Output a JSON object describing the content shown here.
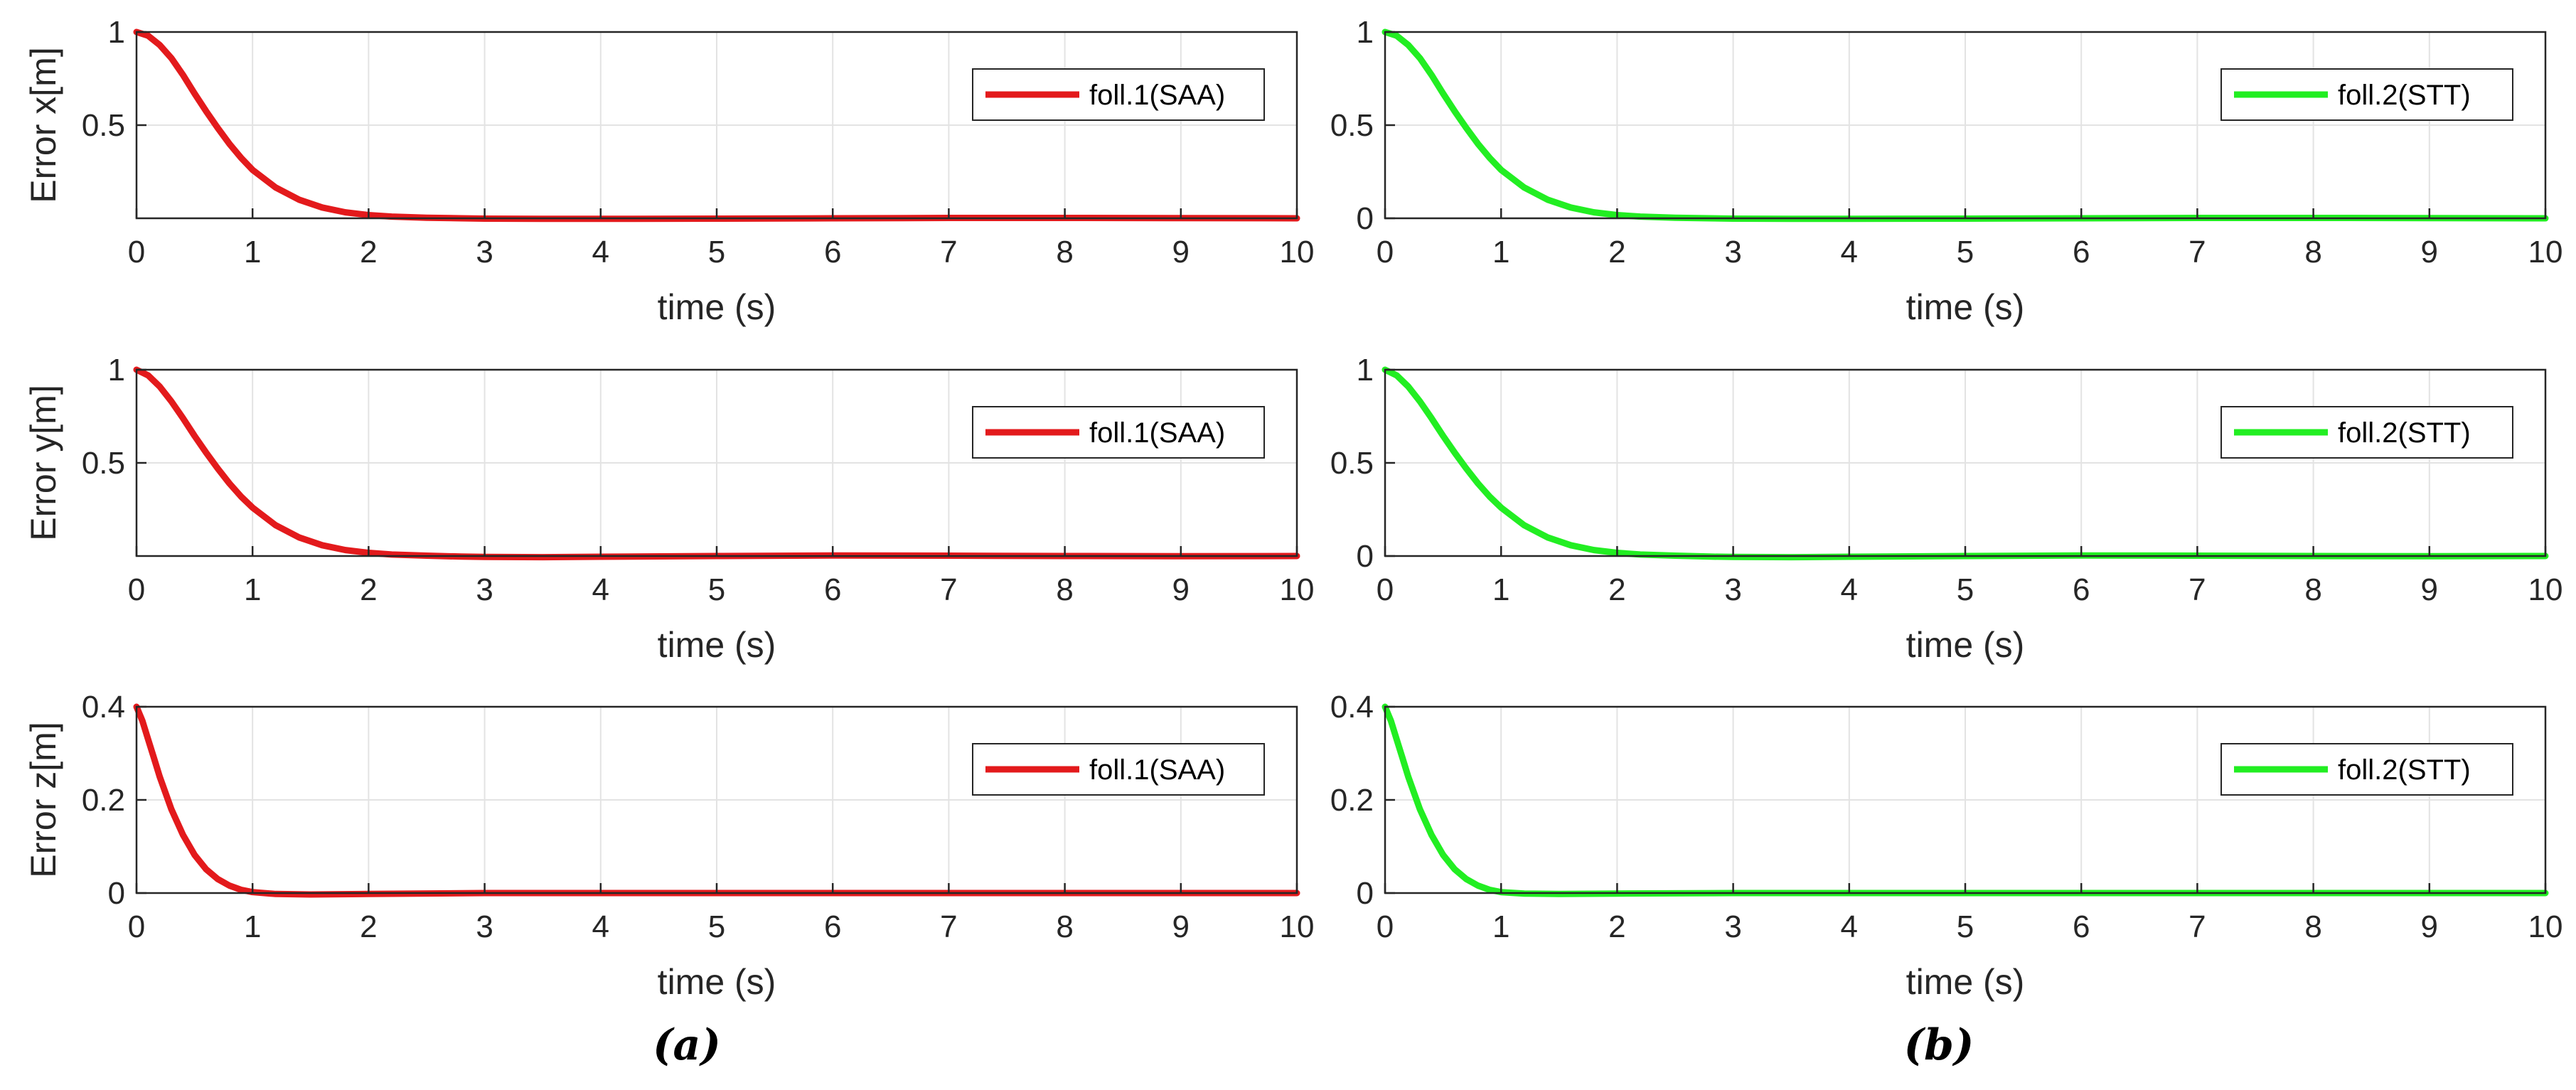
{
  "panel_labels": [
    "(a)",
    "(b)"
  ],
  "chart_data": [
    {
      "type": "line",
      "panel": "(a)",
      "xlabel": "time (s)",
      "ylabel": "Error x[m]",
      "xlim": [
        0,
        10
      ],
      "ylim": [
        0,
        1
      ],
      "xticks": [
        "0",
        "1",
        "2",
        "3",
        "4",
        "5",
        "6",
        "7",
        "8",
        "9",
        "10"
      ],
      "yticks": [
        {
          "v": 0.5,
          "label": "0.5"
        },
        {
          "v": 1,
          "label": "1"
        }
      ],
      "grid": true,
      "legend": "top-right",
      "series": [
        {
          "name": "foll.1(SAA)",
          "color": "#e31a1c",
          "x": [
            0,
            0.1,
            0.2,
            0.3,
            0.4,
            0.5,
            0.6,
            0.7,
            0.8,
            0.9,
            1.0,
            1.2,
            1.4,
            1.6,
            1.8,
            2.0,
            2.2,
            2.5,
            2.8,
            3.0,
            3.5,
            4,
            5,
            6,
            7,
            8,
            9,
            10
          ],
          "y": [
            1.0,
            0.98,
            0.93,
            0.86,
            0.77,
            0.67,
            0.575,
            0.485,
            0.4,
            0.325,
            0.26,
            0.165,
            0.1,
            0.058,
            0.032,
            0.017,
            0.009,
            0.003,
            0.0,
            -0.002,
            -0.003,
            -0.003,
            -0.002,
            0.0,
            0.002,
            0.002,
            0.001,
            0.0
          ]
        }
      ]
    },
    {
      "type": "line",
      "panel": "(b)",
      "xlabel": "time (s)",
      "ylabel": "",
      "xlim": [
        0,
        10
      ],
      "ylim": [
        0,
        1
      ],
      "xticks": [
        "0",
        "1",
        "2",
        "3",
        "4",
        "5",
        "6",
        "7",
        "8",
        "9",
        "10"
      ],
      "yticks": [
        {
          "v": 0,
          "label": "0"
        },
        {
          "v": 0.5,
          "label": "0.5"
        },
        {
          "v": 1,
          "label": "1"
        }
      ],
      "grid": true,
      "legend": "top-right",
      "series": [
        {
          "name": "foll.2(STT)",
          "color": "#22ee22",
          "x": [
            0,
            0.1,
            0.2,
            0.3,
            0.4,
            0.5,
            0.6,
            0.7,
            0.8,
            0.9,
            1.0,
            1.2,
            1.4,
            1.6,
            1.8,
            2.0,
            2.2,
            2.5,
            2.8,
            3.0,
            3.5,
            4,
            5,
            6,
            7,
            8,
            9,
            10
          ],
          "y": [
            1.0,
            0.98,
            0.93,
            0.86,
            0.77,
            0.67,
            0.575,
            0.485,
            0.4,
            0.325,
            0.26,
            0.165,
            0.1,
            0.058,
            0.032,
            0.017,
            0.009,
            0.003,
            0.0,
            -0.002,
            -0.003,
            -0.003,
            -0.002,
            0.0,
            0.002,
            0.002,
            0.001,
            0.0
          ]
        }
      ]
    },
    {
      "type": "line",
      "panel": "(a)",
      "xlabel": "time (s)",
      "ylabel": "Error y[m]",
      "xlim": [
        0,
        10
      ],
      "ylim": [
        0,
        1
      ],
      "xticks": [
        "0",
        "1",
        "2",
        "3",
        "4",
        "5",
        "6",
        "7",
        "8",
        "9",
        "10"
      ],
      "yticks": [
        {
          "v": 0.5,
          "label": "0.5"
        },
        {
          "v": 1,
          "label": "1"
        }
      ],
      "grid": true,
      "legend": "top-right",
      "series": [
        {
          "name": "foll.1(SAA)",
          "color": "#e31a1c",
          "x": [
            0,
            0.1,
            0.2,
            0.3,
            0.4,
            0.5,
            0.6,
            0.7,
            0.8,
            0.9,
            1.0,
            1.2,
            1.4,
            1.6,
            1.8,
            2.0,
            2.2,
            2.5,
            2.8,
            3.0,
            3.5,
            4,
            5,
            6,
            7,
            8,
            9,
            10
          ],
          "y": [
            1.0,
            0.97,
            0.91,
            0.83,
            0.74,
            0.645,
            0.555,
            0.47,
            0.39,
            0.32,
            0.26,
            0.165,
            0.1,
            0.058,
            0.032,
            0.017,
            0.008,
            0.002,
            -0.003,
            -0.005,
            -0.006,
            -0.004,
            0.0,
            0.003,
            0.002,
            0.0,
            -0.001,
            0.0
          ]
        }
      ]
    },
    {
      "type": "line",
      "panel": "(b)",
      "xlabel": "time (s)",
      "ylabel": "",
      "xlim": [
        0,
        10
      ],
      "ylim": [
        0,
        1
      ],
      "xticks": [
        "0",
        "1",
        "2",
        "3",
        "4",
        "5",
        "6",
        "7",
        "8",
        "9",
        "10"
      ],
      "yticks": [
        {
          "v": 0,
          "label": "0"
        },
        {
          "v": 0.5,
          "label": "0.5"
        },
        {
          "v": 1,
          "label": "1"
        }
      ],
      "grid": true,
      "legend": "top-right",
      "series": [
        {
          "name": "foll.2(STT)",
          "color": "#22ee22",
          "x": [
            0,
            0.1,
            0.2,
            0.3,
            0.4,
            0.5,
            0.6,
            0.7,
            0.8,
            0.9,
            1.0,
            1.2,
            1.4,
            1.6,
            1.8,
            2.0,
            2.2,
            2.5,
            2.8,
            3.0,
            3.5,
            4,
            5,
            6,
            7,
            8,
            9,
            10
          ],
          "y": [
            1.0,
            0.97,
            0.91,
            0.83,
            0.74,
            0.645,
            0.555,
            0.47,
            0.39,
            0.32,
            0.26,
            0.165,
            0.1,
            0.058,
            0.032,
            0.017,
            0.008,
            0.002,
            -0.003,
            -0.005,
            -0.006,
            -0.004,
            0.0,
            0.003,
            0.002,
            0.0,
            -0.001,
            0.0
          ]
        }
      ]
    },
    {
      "type": "line",
      "panel": "(a)",
      "xlabel": "time (s)",
      "ylabel": "Error z[m]",
      "xlim": [
        0,
        10
      ],
      "ylim": [
        0,
        0.4
      ],
      "xticks": [
        "0",
        "1",
        "2",
        "3",
        "4",
        "5",
        "6",
        "7",
        "8",
        "9",
        "10"
      ],
      "yticks": [
        {
          "v": 0,
          "label": "0"
        },
        {
          "v": 0.2,
          "label": "0.2"
        },
        {
          "v": 0.4,
          "label": "0.4"
        }
      ],
      "grid": true,
      "legend": "top-right",
      "series": [
        {
          "name": "foll.1(SAA)",
          "color": "#e31a1c",
          "x": [
            0,
            0.05,
            0.1,
            0.15,
            0.2,
            0.25,
            0.3,
            0.4,
            0.5,
            0.6,
            0.7,
            0.8,
            0.9,
            1.0,
            1.2,
            1.5,
            2.0,
            3,
            4,
            5,
            6,
            7,
            8,
            9,
            10
          ],
          "y": [
            0.4,
            0.37,
            0.33,
            0.29,
            0.25,
            0.215,
            0.18,
            0.125,
            0.082,
            0.051,
            0.03,
            0.016,
            0.007,
            0.002,
            -0.002,
            -0.003,
            -0.002,
            0.0,
            0.0,
            0.0,
            0.0,
            0.0,
            0.0,
            0.0,
            0.0
          ]
        }
      ]
    },
    {
      "type": "line",
      "panel": "(b)",
      "xlabel": "time (s)",
      "ylabel": "",
      "xlim": [
        0,
        10
      ],
      "ylim": [
        0,
        0.4
      ],
      "xticks": [
        "0",
        "1",
        "2",
        "3",
        "4",
        "5",
        "6",
        "7",
        "8",
        "9",
        "10"
      ],
      "yticks": [
        {
          "v": 0,
          "label": "0"
        },
        {
          "v": 0.2,
          "label": "0.2"
        },
        {
          "v": 0.4,
          "label": "0.4"
        }
      ],
      "grid": true,
      "legend": "top-right",
      "series": [
        {
          "name": "foll.2(STT)",
          "color": "#22ee22",
          "x": [
            0,
            0.05,
            0.1,
            0.15,
            0.2,
            0.25,
            0.3,
            0.4,
            0.5,
            0.6,
            0.7,
            0.8,
            0.9,
            1.0,
            1.2,
            1.5,
            2.0,
            3,
            4,
            5,
            6,
            7,
            8,
            9,
            10
          ],
          "y": [
            0.4,
            0.37,
            0.33,
            0.29,
            0.25,
            0.215,
            0.18,
            0.125,
            0.082,
            0.051,
            0.03,
            0.016,
            0.007,
            0.002,
            -0.001,
            -0.002,
            -0.001,
            0.0,
            0.0,
            0.0,
            0.0,
            0.0,
            0.0,
            0.0,
            0.0
          ]
        }
      ]
    }
  ]
}
